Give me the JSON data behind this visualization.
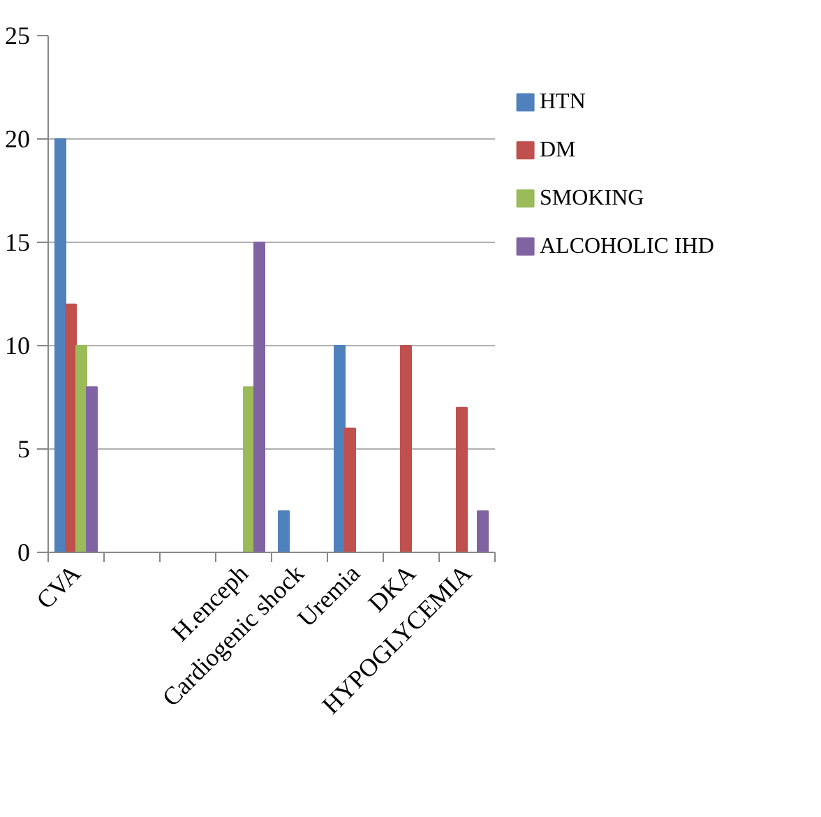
{
  "chart_data": {
    "type": "bar",
    "categories": [
      "CVA",
      null,
      null,
      "H.enceph",
      "Cardiogenic shock",
      "Uremia",
      "DKA",
      "HYPOGLYCEMIA"
    ],
    "series": [
      {
        "name": "HTN",
        "color": "#4f81bd",
        "values": [
          20,
          null,
          null,
          null,
          2,
          10,
          null,
          null
        ]
      },
      {
        "name": "DM",
        "color": "#c0504d",
        "values": [
          12,
          null,
          null,
          null,
          null,
          6,
          10,
          7
        ]
      },
      {
        "name": "SMOKING",
        "color": "#9bbb59",
        "values": [
          10,
          null,
          null,
          8,
          null,
          null,
          null,
          null
        ]
      },
      {
        "name": "ALCOHOLIC IHD",
        "color": "#8064a2",
        "values": [
          8,
          null,
          null,
          15,
          null,
          null,
          null,
          2
        ]
      }
    ],
    "ylim": [
      0,
      25
    ],
    "yticks": [
      0,
      5,
      10,
      15,
      20,
      25
    ],
    "grid": "y",
    "legend": "right"
  }
}
